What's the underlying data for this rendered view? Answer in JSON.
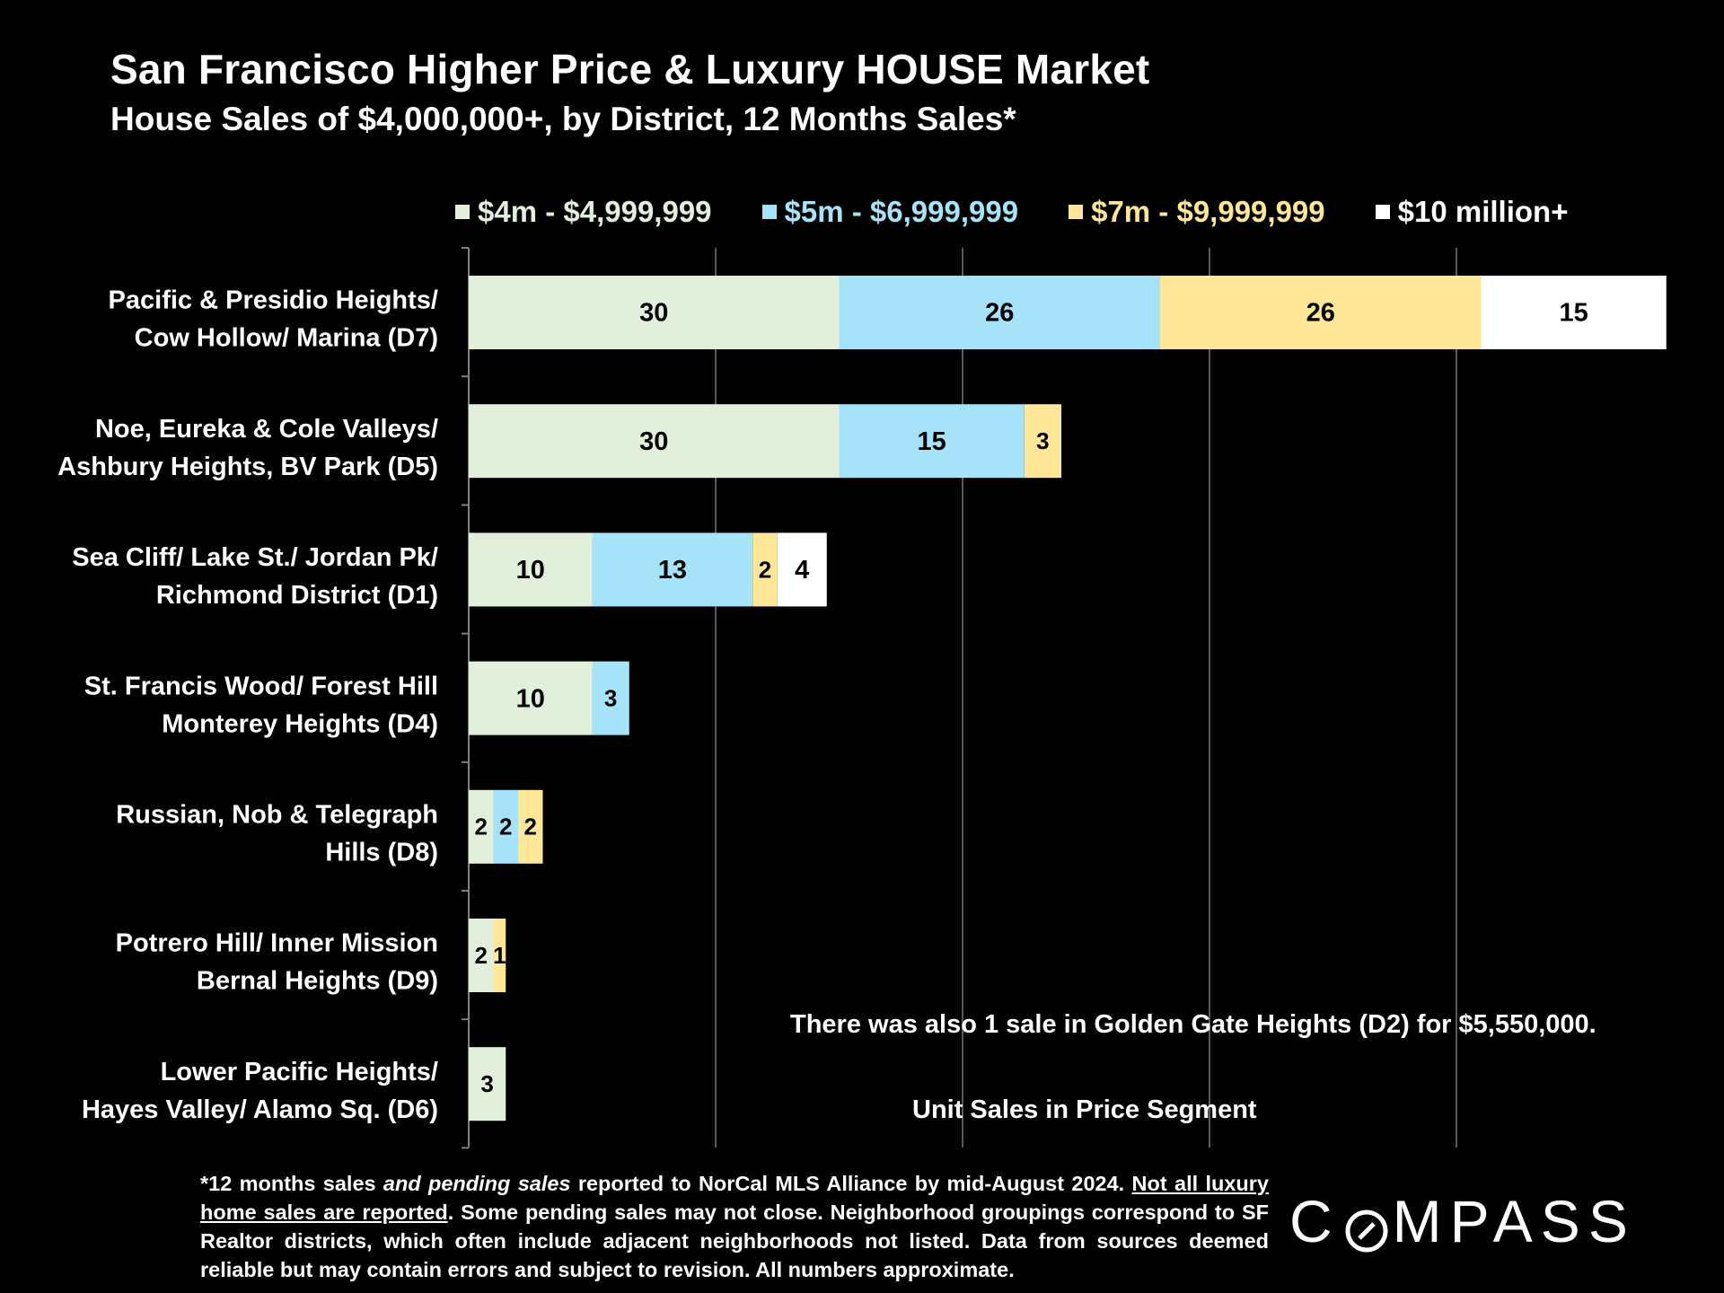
{
  "header": {
    "title": "San Francisco Higher Price & Luxury HOUSE Market",
    "subtitle": "House Sales of $4,000,000+, by District, 12 Months Sales*"
  },
  "colors": {
    "background": "#000000",
    "seg1": "#E2EFDA",
    "seg2": "#A6E3F9",
    "seg3": "#FFE699",
    "seg4": "#FFFFFF",
    "gridline": "#595959",
    "text": "#FFFFFF"
  },
  "chart_data": {
    "type": "bar",
    "orientation": "horizontal",
    "stacked": true,
    "title": "San Francisco Higher Price & Luxury HOUSE Market",
    "xlabel": "Unit Sales in Price Segment",
    "ylabel": "",
    "xlim": [
      0,
      97
    ],
    "grid": true,
    "legend_position": "top",
    "categories": [
      [
        "Pacific & Presidio Heights/",
        "Cow Hollow/ Marina (D7)"
      ],
      [
        "Noe, Eureka & Cole Valleys/",
        "Ashbury Heights, BV Park (D5)"
      ],
      [
        "Sea Cliff/ Lake St./ Jordan Pk/",
        "Richmond District (D1)"
      ],
      [
        "St. Francis Wood/ Forest Hill",
        "Monterey Heights (D4)"
      ],
      [
        "Russian, Nob & Telegraph",
        "Hills (D8)"
      ],
      [
        "Potrero Hill/ Inner Mission",
        "Bernal Heights (D9)"
      ],
      [
        "Lower Pacific Heights/",
        "Hayes Valley/ Alamo Sq. (D6)"
      ]
    ],
    "series": [
      {
        "name": "$4m - $4,999,999",
        "values": [
          30,
          30,
          10,
          10,
          2,
          2,
          3
        ]
      },
      {
        "name": "$5m - $6,999,999",
        "values": [
          26,
          15,
          13,
          3,
          2,
          0,
          0
        ]
      },
      {
        "name": "$7m - $9,999,999",
        "values": [
          26,
          3,
          2,
          0,
          2,
          1,
          0
        ]
      },
      {
        "name": "$10 million+",
        "values": [
          15,
          0,
          4,
          0,
          0,
          0,
          0
        ]
      }
    ]
  },
  "annotations": {
    "note": "There was also 1 sale in Golden Gate Heights (D2) for $5,550,000.",
    "xlabel": "Unit Sales in Price Segment"
  },
  "footnote": {
    "p1": "*12 months sales ",
    "p2": "and pending sales",
    "p3": " reported to NorCal MLS Alliance by mid-August 2024. ",
    "p4": "Not all luxury home sales are reported",
    "p5": ". Some pending sales may not close. Neighborhood groupings correspond to SF Realtor districts, which often include adjacent neighborhoods not listed. Data from sources deemed reliable but may contain errors and subject to revision. All numbers approximate."
  },
  "logo": {
    "left": "C",
    "right": "MPASS"
  }
}
